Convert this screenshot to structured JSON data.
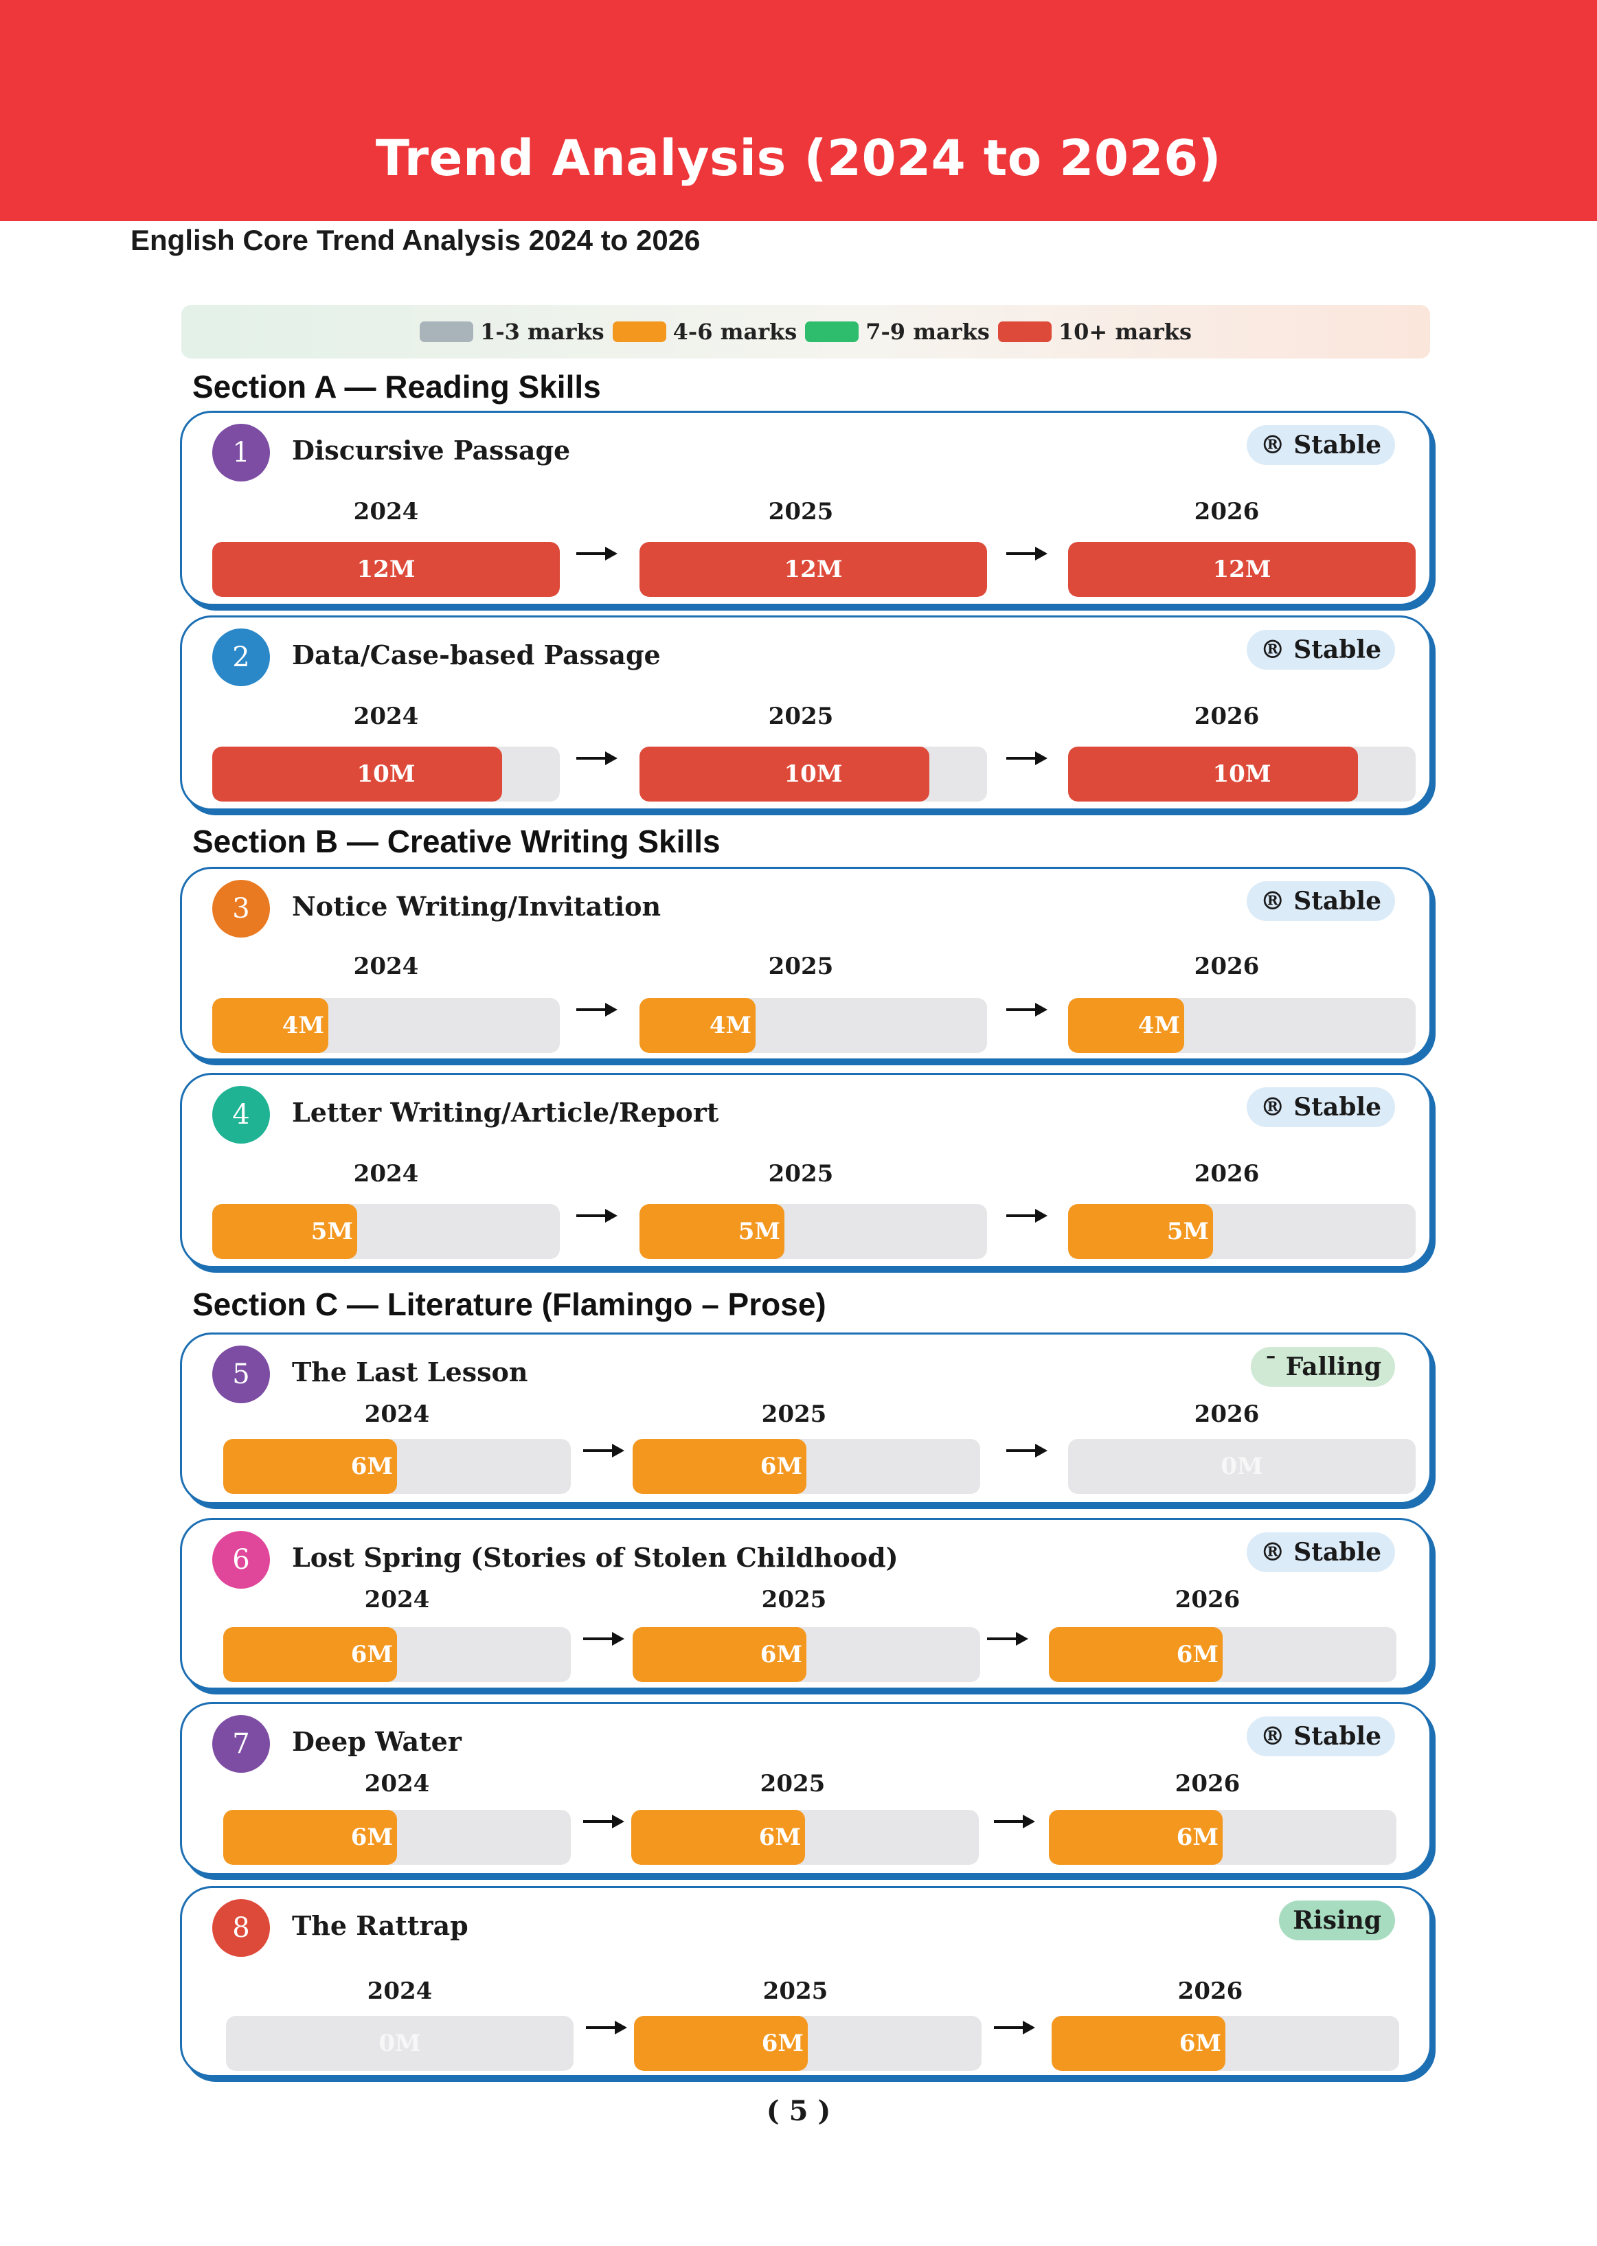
{
  "header": {
    "title": "Trend Analysis (2024 to 2026)"
  },
  "subtitle": "English Core Trend Analysis 2024 to 2026",
  "legend": [
    {
      "label": "1-3 marks",
      "color": "#a9b4ba"
    },
    {
      "label": "4-6 marks",
      "color": "#f4971f"
    },
    {
      "label": "7-9 marks",
      "color": "#2dbd6d"
    },
    {
      "label": "10+ marks",
      "color": "#de4a3a"
    }
  ],
  "scale_max_marks": 12,
  "years": [
    "2024",
    "2025",
    "2026"
  ],
  "sections": [
    {
      "heading": "Section A — Reading Skills"
    },
    {
      "heading": "Section B — Creative Writing Skills"
    },
    {
      "heading": "Section C — Literature (Flamingo – Prose)"
    }
  ],
  "topics": [
    {
      "number": "1",
      "name": "Discursive Passage",
      "badge_color": "#7c4da3",
      "trend": "® Stable",
      "trend_style": "stable",
      "marks": [
        {
          "label": "12M",
          "value": 12,
          "color": "#de4a3a"
        },
        {
          "label": "12M",
          "value": 12,
          "color": "#de4a3a"
        },
        {
          "label": "12M",
          "value": 12,
          "color": "#de4a3a"
        }
      ]
    },
    {
      "number": "2",
      "name": "Data/Case-based Passage",
      "badge_color": "#2a87c8",
      "trend": "® Stable",
      "trend_style": "stable",
      "marks": [
        {
          "label": "10M",
          "value": 10,
          "color": "#de4a3a"
        },
        {
          "label": "10M",
          "value": 10,
          "color": "#de4a3a"
        },
        {
          "label": "10M",
          "value": 10,
          "color": "#de4a3a"
        }
      ]
    },
    {
      "number": "3",
      "name": "Notice Writing/Invitation",
      "badge_color": "#ea7a22",
      "trend": "® Stable",
      "trend_style": "stable",
      "marks": [
        {
          "label": "4M",
          "value": 4,
          "color": "#f4971f"
        },
        {
          "label": "4M",
          "value": 4,
          "color": "#f4971f"
        },
        {
          "label": "4M",
          "value": 4,
          "color": "#f4971f"
        }
      ]
    },
    {
      "number": "4",
      "name": "Letter Writing/Article/Report",
      "badge_color": "#1fb394",
      "trend": "® Stable",
      "trend_style": "stable",
      "marks": [
        {
          "label": "5M",
          "value": 5,
          "color": "#f4971f"
        },
        {
          "label": "5M",
          "value": 5,
          "color": "#f4971f"
        },
        {
          "label": "5M",
          "value": 5,
          "color": "#f4971f"
        }
      ]
    },
    {
      "number": "5",
      "name": "The Last Lesson",
      "badge_color": "#7c4da3",
      "trend": "ˉ Falling",
      "trend_style": "falling",
      "marks": [
        {
          "label": "6M",
          "value": 6,
          "color": "#f4971f"
        },
        {
          "label": "6M",
          "value": 6,
          "color": "#f4971f"
        },
        {
          "label": "0M",
          "value": 0,
          "color": "#f4971f"
        }
      ]
    },
    {
      "number": "6",
      "name": "Lost Spring (Stories of Stolen Childhood)",
      "badge_color": "#e0479a",
      "trend": "® Stable",
      "trend_style": "stable",
      "marks": [
        {
          "label": "6M",
          "value": 6,
          "color": "#f4971f"
        },
        {
          "label": "6M",
          "value": 6,
          "color": "#f4971f"
        },
        {
          "label": "6M",
          "value": 6,
          "color": "#f4971f"
        }
      ]
    },
    {
      "number": "7",
      "name": "Deep Water",
      "badge_color": "#7c4da3",
      "trend": "® Stable",
      "trend_style": "stable",
      "marks": [
        {
          "label": "6M",
          "value": 6,
          "color": "#f4971f"
        },
        {
          "label": "6M",
          "value": 6,
          "color": "#f4971f"
        },
        {
          "label": "6M",
          "value": 6,
          "color": "#f4971f"
        }
      ]
    },
    {
      "number": "8",
      "name": "The Rattrap",
      "badge_color": "#de4a3a",
      "trend": "Rising",
      "trend_style": "rising",
      "marks": [
        {
          "label": "0M",
          "value": 0,
          "color": "#f4971f"
        },
        {
          "label": "6M",
          "value": 6,
          "color": "#f4971f"
        },
        {
          "label": "6M",
          "value": 6,
          "color": "#f4971f"
        }
      ]
    }
  ],
  "footer": {
    "page_number": "( 5 )"
  }
}
